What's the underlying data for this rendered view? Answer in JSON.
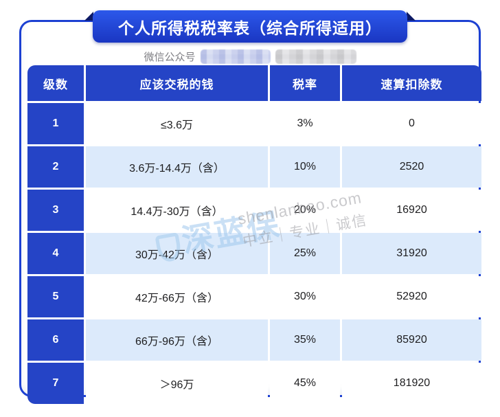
{
  "banner": {
    "title": "个人所得税税率表（综合所得适用）"
  },
  "wechat": {
    "label": "微信公众号",
    "account_redacted": true
  },
  "table": {
    "headers": [
      "级数",
      "应该交税的钱",
      "税率",
      "速算扣除数"
    ],
    "rows": [
      {
        "level": "1",
        "bracket": "≤3.6万",
        "rate": "3%",
        "deduction": "0"
      },
      {
        "level": "2",
        "bracket": "3.6万-14.4万（含）",
        "rate": "10%",
        "deduction": "2520"
      },
      {
        "level": "3",
        "bracket": "14.4万-30万（含）",
        "rate": "20%",
        "deduction": "16920"
      },
      {
        "level": "4",
        "bracket": "30万-42万（含）",
        "rate": "25%",
        "deduction": "31920"
      },
      {
        "level": "5",
        "bracket": "42万-66万（含）",
        "rate": "30%",
        "deduction": "52920"
      },
      {
        "level": "6",
        "bracket": "66万-96万（含）",
        "rate": "35%",
        "deduction": "85920"
      },
      {
        "level": "7",
        "bracket": "＞96万",
        "rate": "45%",
        "deduction": "181920"
      }
    ]
  },
  "watermark": {
    "logo": "深蓝保",
    "site": "shenlanbao.com",
    "slogan": "中立｜专业｜诚信"
  },
  "colors": {
    "primary_blue": "#2544c6",
    "banner_gradient_top": "#2c58ea",
    "banner_gradient_bottom": "#1a36c2",
    "fold_navy": "#0d1a66",
    "card_border": "#1c40d2",
    "row_light_blue": "#dceafb",
    "row_white": "#ffffff",
    "text_dark": "#1d1d1f",
    "text_gray": "#7f7f84"
  }
}
